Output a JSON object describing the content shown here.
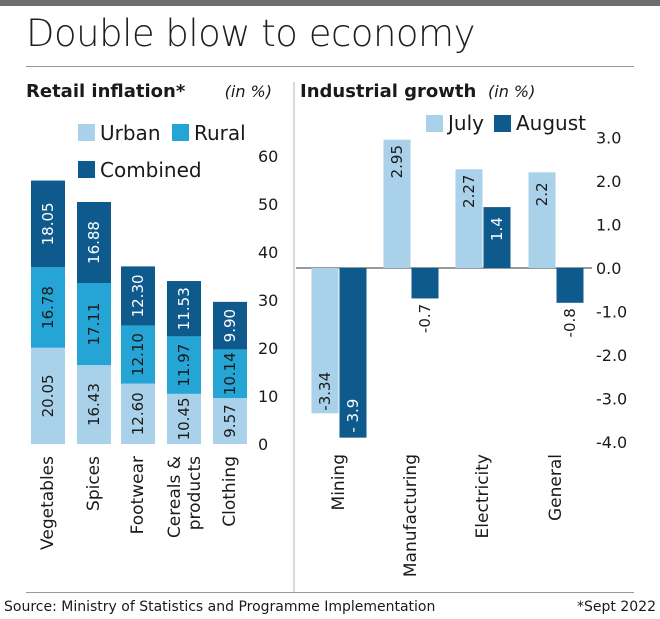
{
  "headline": "Double blow to economy",
  "footer": {
    "source": "Source: Ministry of Statistics and Programme Implementation",
    "note": "*Sept 2022"
  },
  "colors": {
    "urban": "#a9d2ea",
    "rural": "#25a4d6",
    "combined": "#0e5a8c",
    "july": "#a9d2ea",
    "august": "#0e5a8c"
  },
  "chart_data": [
    {
      "type": "bar",
      "stacked": true,
      "title": "Retail inflation*",
      "subtitle": "(in %)",
      "categories": [
        "Vegetables",
        "Spices",
        "Footwear",
        "Cereals & products",
        "Clothing"
      ],
      "category_lines": [
        [
          "Vegetables"
        ],
        [
          "Spices"
        ],
        [
          "Footwear"
        ],
        [
          "Cereals &",
          "products"
        ],
        [
          "Clothing"
        ]
      ],
      "series": [
        {
          "name": "Urban",
          "values": [
            20.05,
            16.43,
            12.6,
            10.45,
            9.57
          ],
          "labels": [
            "20.05",
            "16.43",
            "12.60",
            "10.45",
            "9.57"
          ]
        },
        {
          "name": "Rural",
          "values": [
            16.78,
            17.11,
            12.1,
            11.97,
            10.14
          ],
          "labels": [
            "16.78",
            "17.11",
            "12.10",
            "11.97",
            "10.14"
          ]
        },
        {
          "name": "Combined",
          "values": [
            18.05,
            16.88,
            12.3,
            11.53,
            9.9
          ],
          "labels": [
            "18.05",
            "16.88",
            "12.30",
            "11.53",
            "9.90"
          ]
        }
      ],
      "yticks": [
        0,
        10,
        20,
        30,
        40,
        50,
        60
      ],
      "ytick_labels": [
        "0",
        "10",
        "20",
        "30",
        "40",
        "50",
        "60"
      ],
      "ylim": [
        0,
        60
      ],
      "legend_position": "top"
    },
    {
      "type": "bar",
      "title": "Industrial growth",
      "subtitle": "(in %)",
      "categories": [
        "Mining",
        "Manufacturing",
        "Electricity",
        "General"
      ],
      "series": [
        {
          "name": "July",
          "values": [
            -3.34,
            2.95,
            2.27,
            2.2
          ],
          "labels": [
            "-3.34",
            "2.95",
            "2.27",
            "2.2"
          ]
        },
        {
          "name": "August",
          "values": [
            -3.9,
            -0.7,
            1.4,
            -0.8
          ],
          "labels": [
            "- 3.9",
            "-0.7",
            "1.4",
            "-0.8"
          ]
        }
      ],
      "yticks": [
        3,
        2,
        1,
        0,
        -1,
        -2,
        -3,
        -4
      ],
      "ytick_labels": [
        "3.0",
        "2.0",
        "1.0",
        "0.0",
        "-1.0",
        "-2.0",
        "-3.0",
        "-4.0"
      ],
      "ylim": [
        -4,
        3
      ],
      "legend_position": "top"
    }
  ]
}
